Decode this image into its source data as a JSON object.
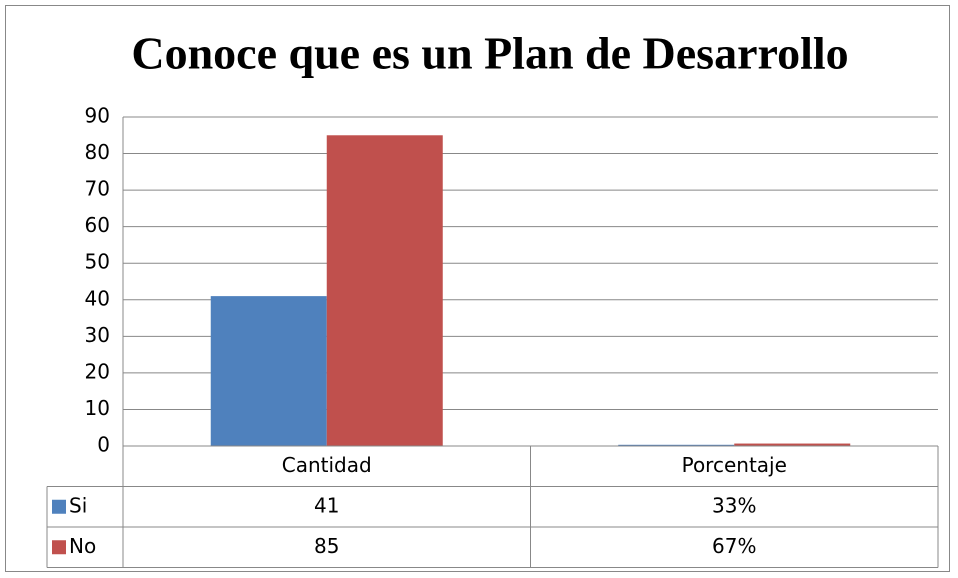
{
  "chart_data": {
    "type": "bar",
    "title": "Conoce que es un Plan de Desarrollo",
    "categories": [
      "Cantidad",
      "Porcentaje"
    ],
    "series": [
      {
        "name": "Si",
        "color": "#4f81bd",
        "values": [
          41,
          0.33
        ],
        "value_labels": [
          "41",
          "33%"
        ]
      },
      {
        "name": "No",
        "color": "#c0504d",
        "values": [
          85,
          0.67
        ],
        "value_labels": [
          "85",
          "67%"
        ]
      }
    ],
    "ylim": [
      0,
      90
    ],
    "yticks": [
      0,
      10,
      20,
      30,
      40,
      50,
      60,
      70,
      80,
      90
    ],
    "grid": true
  }
}
